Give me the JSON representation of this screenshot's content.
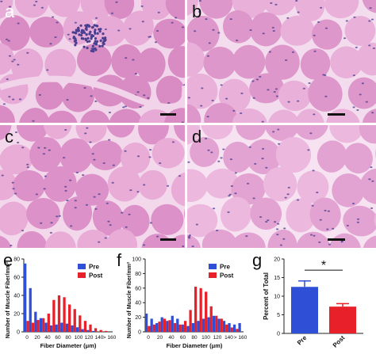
{
  "panels": [
    {
      "letter": "a",
      "bg": "#d98bc4",
      "cell": "#e7a9d6",
      "membrane": "#f2d4ea",
      "nucleus": "#4b3f8f"
    },
    {
      "letter": "b",
      "bg": "#dd97ca",
      "cell": "#e9b0d9",
      "membrane": "#f4dcef",
      "nucleus": "#4b3f8f"
    },
    {
      "letter": "c",
      "bg": "#dc92c8",
      "cell": "#e8acd7",
      "membrane": "#f3d8ec",
      "nucleus": "#4b3f8f"
    },
    {
      "letter": "d",
      "bg": "#e3a3d2",
      "cell": "#ecb8de",
      "membrane": "#f6e2f1",
      "nucleus": "#4b3f8f"
    }
  ],
  "chart_data": [
    {
      "letter": "e",
      "type": "bar",
      "xlabel": "Fiber Diameter (μm)",
      "ylabel": "Number of Muscle Fiber/mm²",
      "ylim": [
        0,
        80
      ],
      "yticks": [
        0,
        20,
        40,
        60,
        80
      ],
      "xticks": [
        "0",
        "20",
        "40",
        "60",
        "80",
        "100",
        "120",
        "140",
        "> 160"
      ],
      "legend_position": "top-right",
      "colors": {
        "Pre": "#2f4fd6",
        "Post": "#e8202a"
      },
      "series": [
        {
          "name": "Pre",
          "values": [
            75,
            48,
            22,
            15,
            10,
            7,
            8,
            10,
            9,
            7,
            5,
            3,
            2,
            1,
            0,
            0,
            0
          ]
        },
        {
          "name": "Post",
          "values": [
            12,
            10,
            13,
            15,
            20,
            35,
            40,
            38,
            30,
            25,
            18,
            12,
            8,
            4,
            2,
            1,
            0
          ]
        }
      ]
    },
    {
      "letter": "f",
      "type": "bar",
      "xlabel": "Fiber Diameter (μm)",
      "ylabel": "Number of Muscle Fiber/mm²",
      "ylim": [
        0,
        100
      ],
      "yticks": [
        0,
        20,
        40,
        60,
        80,
        100
      ],
      "xticks": [
        "0",
        "20",
        "40",
        "60",
        "80",
        "100",
        "120",
        "140",
        "> 160"
      ],
      "legend_position": "top-right",
      "colors": {
        "Pre": "#2f4fd6",
        "Post": "#e8202a"
      },
      "series": [
        {
          "name": "Pre",
          "values": [
            25,
            18,
            12,
            20,
            15,
            22,
            18,
            10,
            8,
            12,
            15,
            18,
            20,
            22,
            18,
            15,
            12,
            10,
            12
          ]
        },
        {
          "name": "Post",
          "values": [
            8,
            10,
            14,
            18,
            16,
            12,
            10,
            15,
            30,
            62,
            60,
            55,
            35,
            22,
            18,
            10,
            6,
            4,
            0
          ]
        }
      ]
    },
    {
      "letter": "g",
      "type": "bar",
      "ylabel": "Percent of Total",
      "ylim": [
        0,
        20
      ],
      "yticks": [
        0,
        5,
        10,
        15,
        20
      ],
      "categories": [
        "Pre",
        "Post"
      ],
      "values": [
        12.5,
        7.2
      ],
      "errors": [
        1.6,
        0.8
      ],
      "colors": [
        "#2f4fd6",
        "#e8202a"
      ],
      "significance": "*"
    }
  ]
}
